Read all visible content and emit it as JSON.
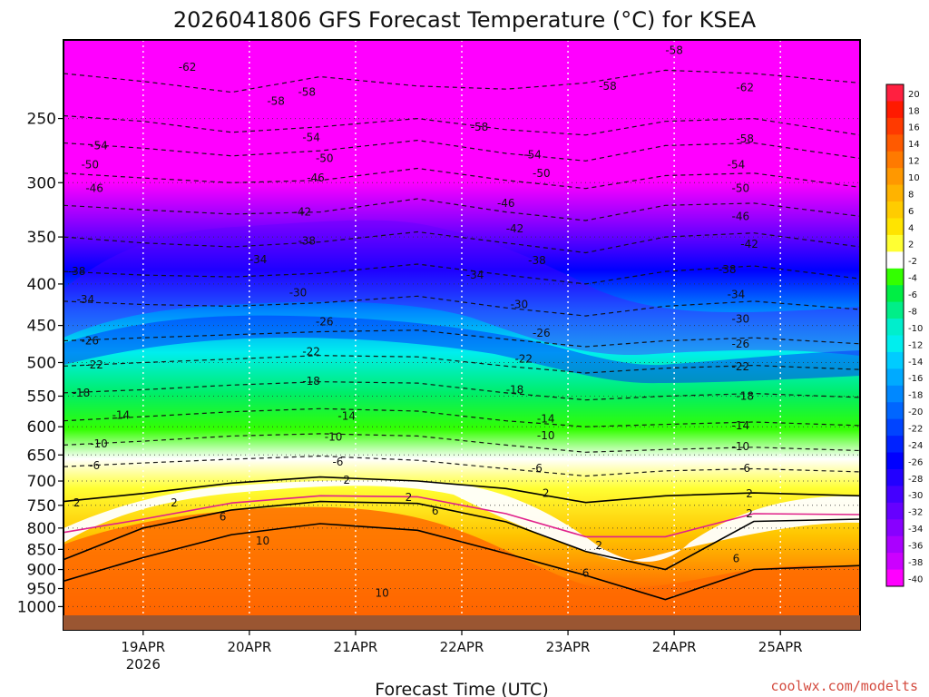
{
  "chart_data": {
    "type": "heatmap",
    "title": "2026041806 GFS Forecast Temperature (°C) for KSEA",
    "xlabel": "Forecast Time (UTC)",
    "ylabel": "",
    "credit": "coolwx.com/modelts",
    "x_ticks": [
      {
        "label": "19APR",
        "sublabel": "2026",
        "t": 18
      },
      {
        "label": "20APR",
        "sublabel": "",
        "t": 42
      },
      {
        "label": "21APR",
        "sublabel": "",
        "t": 66
      },
      {
        "label": "22APR",
        "sublabel": "",
        "t": 90
      },
      {
        "label": "23APR",
        "sublabel": "",
        "t": 114
      },
      {
        "label": "24APR",
        "sublabel": "",
        "t": 138
      },
      {
        "label": "25APR",
        "sublabel": "",
        "t": 162
      }
    ],
    "x_range_hours": [
      0,
      180
    ],
    "y_levels_hpa": [
      250,
      300,
      350,
      400,
      450,
      500,
      550,
      600,
      650,
      700,
      750,
      800,
      850,
      900,
      950,
      1000
    ],
    "y_range_hpa": [
      200,
      1025
    ],
    "y_scale": "log",
    "colorbar": {
      "labels": [
        20,
        18,
        16,
        14,
        12,
        10,
        8,
        6,
        4,
        2,
        -2,
        -4,
        -6,
        -8,
        -10,
        -12,
        -14,
        -16,
        -18,
        -20,
        -22,
        -24,
        -26,
        -28,
        -30,
        -32,
        -34,
        -36,
        -38,
        -40
      ],
      "colors": [
        "#ff2040",
        "#ff1a00",
        "#ff3a00",
        "#ff5a00",
        "#ff7a00",
        "#ff9800",
        "#ffb300",
        "#ffcc00",
        "#ffe400",
        "#ffff33",
        "#ffffff",
        "#33ff00",
        "#00ee44",
        "#00ee88",
        "#00eecc",
        "#00eeee",
        "#00ccff",
        "#00aaff",
        "#0088ff",
        "#0066ff",
        "#0044ff",
        "#0022ff",
        "#0000ff",
        "#2200ff",
        "#4400ff",
        "#6600ff",
        "#8800ff",
        "#aa00ff",
        "#cc00ff",
        "#ff00ff"
      ]
    },
    "contour_labels_blue_region": [
      {
        "value": "-62",
        "t": 28,
        "p": 216
      },
      {
        "value": "-58",
        "t": 48,
        "p": 238
      },
      {
        "value": "-54",
        "t": 8,
        "p": 270
      },
      {
        "value": "-50",
        "t": 6,
        "p": 285
      },
      {
        "value": "-46",
        "t": 7,
        "p": 305
      },
      {
        "value": "-38",
        "t": 3,
        "p": 386
      },
      {
        "value": "-34",
        "t": 5,
        "p": 418
      },
      {
        "value": "-26",
        "t": 6,
        "p": 470
      },
      {
        "value": "-22",
        "t": 7,
        "p": 503
      },
      {
        "value": "-18",
        "t": 4,
        "p": 545
      },
      {
        "value": "-14",
        "t": 13,
        "p": 581
      },
      {
        "value": "-10",
        "t": 8,
        "p": 630
      },
      {
        "value": "-6",
        "t": 7,
        "p": 670
      },
      {
        "value": "2",
        "t": 3,
        "p": 745
      },
      {
        "value": "2",
        "t": 25,
        "p": 745
      },
      {
        "value": "6",
        "t": 36,
        "p": 775
      },
      {
        "value": "10",
        "t": 45,
        "p": 830
      },
      {
        "value": "10",
        "t": 72,
        "p": 962
      },
      {
        "value": "-30",
        "t": 53,
        "p": 410
      },
      {
        "value": "-34",
        "t": 44,
        "p": 373
      },
      {
        "value": "-38",
        "t": 55,
        "p": 354
      },
      {
        "value": "-42",
        "t": 54,
        "p": 326
      },
      {
        "value": "-46",
        "t": 57,
        "p": 296
      },
      {
        "value": "-50",
        "t": 59,
        "p": 280
      },
      {
        "value": "-54",
        "t": 56,
        "p": 264
      },
      {
        "value": "-58",
        "t": 55,
        "p": 232
      },
      {
        "value": "-26",
        "t": 59,
        "p": 445
      },
      {
        "value": "-22",
        "t": 56,
        "p": 485
      },
      {
        "value": "-18",
        "t": 56,
        "p": 527
      },
      {
        "value": "-14",
        "t": 64,
        "p": 582
      },
      {
        "value": "-10",
        "t": 61,
        "p": 618
      },
      {
        "value": "-6",
        "t": 62,
        "p": 663
      },
      {
        "value": "2",
        "t": 64,
        "p": 698
      },
      {
        "value": "2",
        "t": 78,
        "p": 733
      },
      {
        "value": "6",
        "t": 84,
        "p": 762
      },
      {
        "value": "-58",
        "t": 94,
        "p": 256
      },
      {
        "value": "-54",
        "t": 106,
        "p": 277
      },
      {
        "value": "-50",
        "t": 108,
        "p": 292
      },
      {
        "value": "-46",
        "t": 100,
        "p": 318
      },
      {
        "value": "-42",
        "t": 102,
        "p": 342
      },
      {
        "value": "-38",
        "t": 107,
        "p": 374
      },
      {
        "value": "-34",
        "t": 93,
        "p": 390
      },
      {
        "value": "-30",
        "t": 103,
        "p": 424
      },
      {
        "value": "-26",
        "t": 108,
        "p": 460
      },
      {
        "value": "-22",
        "t": 104,
        "p": 495
      },
      {
        "value": "-18",
        "t": 102,
        "p": 540
      },
      {
        "value": "-14",
        "t": 109,
        "p": 587
      },
      {
        "value": "-10",
        "t": 109,
        "p": 615
      },
      {
        "value": "-6",
        "t": 107,
        "p": 675
      },
      {
        "value": "2",
        "t": 109,
        "p": 725
      },
      {
        "value": "2",
        "t": 121,
        "p": 840
      },
      {
        "value": "6",
        "t": 118,
        "p": 909
      },
      {
        "value": "-58",
        "t": 138,
        "p": 206
      },
      {
        "value": "-58",
        "t": 123,
        "p": 228
      },
      {
        "value": "-62",
        "t": 154,
        "p": 229
      },
      {
        "value": "-58",
        "t": 154,
        "p": 265
      },
      {
        "value": "-54",
        "t": 152,
        "p": 285
      },
      {
        "value": "-50",
        "t": 153,
        "p": 305
      },
      {
        "value": "-46",
        "t": 153,
        "p": 330
      },
      {
        "value": "-42",
        "t": 155,
        "p": 357
      },
      {
        "value": "-38",
        "t": 150,
        "p": 384
      },
      {
        "value": "-34",
        "t": 152,
        "p": 412
      },
      {
        "value": "-30",
        "t": 153,
        "p": 442
      },
      {
        "value": "-26",
        "t": 153,
        "p": 474
      },
      {
        "value": "-22",
        "t": 153,
        "p": 506
      },
      {
        "value": "-18",
        "t": 154,
        "p": 550
      },
      {
        "value": "-14",
        "t": 153,
        "p": 598
      },
      {
        "value": "-10",
        "t": 153,
        "p": 635
      },
      {
        "value": "-6",
        "t": 154,
        "p": 675
      },
      {
        "value": "2",
        "t": 155,
        "p": 726
      },
      {
        "value": "2",
        "t": 155,
        "p": 768
      },
      {
        "value": "6",
        "t": 152,
        "p": 872
      }
    ]
  }
}
